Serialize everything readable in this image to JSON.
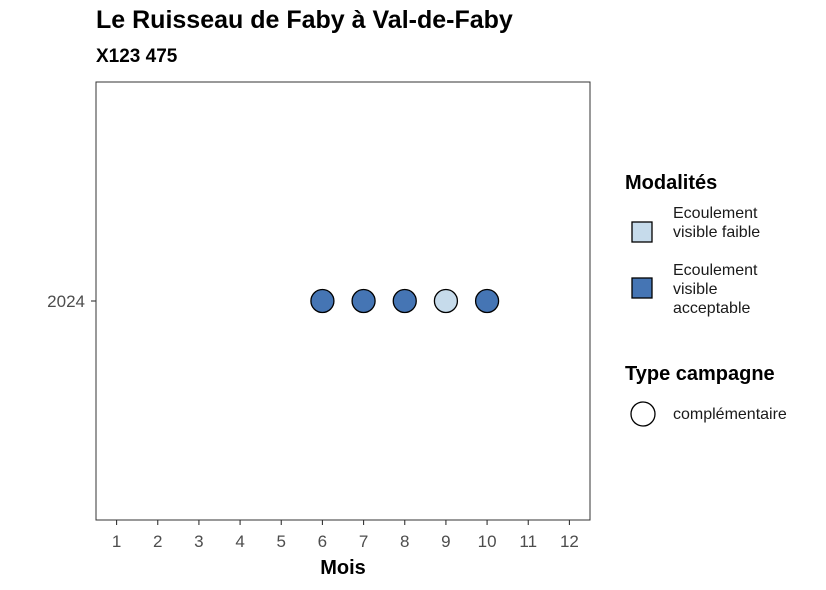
{
  "title": "Le Ruisseau de Faby à Val-de-Faby",
  "subtitle": "X123 475",
  "chart_data": {
    "type": "scatter",
    "title": "Le Ruisseau de Faby à Val-de-Faby",
    "subtitle": "X123 475",
    "xlabel": "Mois",
    "ylabel": "",
    "x_ticks": [
      "1",
      "2",
      "3",
      "4",
      "5",
      "6",
      "7",
      "8",
      "9",
      "10",
      "11",
      "12"
    ],
    "xlim": [
      0.5,
      12.5
    ],
    "y_categories": [
      "2024"
    ],
    "grid": false,
    "legend_position": "right",
    "points": [
      {
        "x": 6,
        "y": "2024",
        "modalite": "Ecoulement visible acceptable",
        "type_campagne": "complémentaire"
      },
      {
        "x": 7,
        "y": "2024",
        "modalite": "Ecoulement visible acceptable",
        "type_campagne": "complémentaire"
      },
      {
        "x": 8,
        "y": "2024",
        "modalite": "Ecoulement visible acceptable",
        "type_campagne": "complémentaire"
      },
      {
        "x": 9,
        "y": "2024",
        "modalite": "Ecoulement visible faible",
        "type_campagne": "complémentaire"
      },
      {
        "x": 10,
        "y": "2024",
        "modalite": "Ecoulement visible acceptable",
        "type_campagne": "complémentaire"
      }
    ],
    "legends": {
      "modalites": {
        "title": "Modalités",
        "items": [
          {
            "label": "Ecoulement visible faible",
            "color": "#c6dbeb"
          },
          {
            "label": "Ecoulement visible acceptable",
            "color": "#4575b4"
          }
        ]
      },
      "type_campagne": {
        "title": "Type campagne",
        "items": [
          {
            "label": "complémentaire",
            "shape": "circle"
          }
        ]
      }
    }
  }
}
